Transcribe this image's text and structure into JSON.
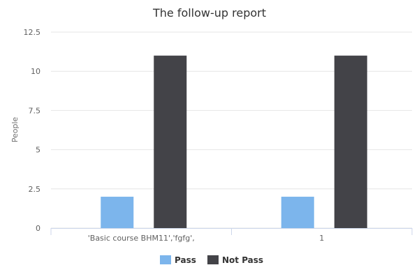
{
  "chart_data": {
    "type": "bar",
    "title": "The follow-up report",
    "xlabel": "",
    "ylabel": "People",
    "categories": [
      "'Basic course BHM11','fgfg',",
      "1"
    ],
    "series": [
      {
        "name": "Pass",
        "values": [
          2,
          2
        ],
        "color": "#7cb5ec"
      },
      {
        "name": "Not Pass",
        "values": [
          11,
          11
        ],
        "color": "#434348"
      }
    ],
    "ylim": [
      0,
      12.5
    ],
    "yticks": [
      "0",
      "2.5",
      "5",
      "7.5",
      "10",
      "12.5"
    ],
    "grid": true,
    "legend_position": "bottom-center"
  }
}
